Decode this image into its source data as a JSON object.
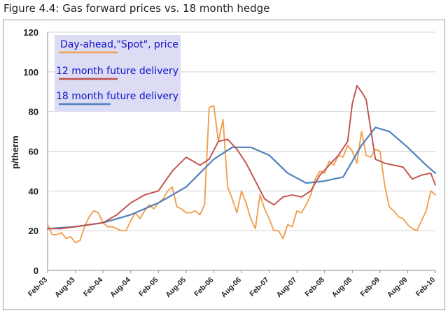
{
  "title": "Figure 4.4: Gas forward prices vs. 18 month hedge",
  "chart_data": {
    "type": "line",
    "ylabel": "p/therm",
    "xlabel": "",
    "ylim": [
      0,
      120
    ],
    "yticks": [
      0,
      20,
      40,
      60,
      80,
      100,
      120
    ],
    "xlim": [
      "2003-02",
      "2010-02"
    ],
    "x_tick_labels": [
      "Feb-03",
      "Aug-03",
      "Feb-04",
      "Aug-04",
      "Feb-05",
      "Aug-05",
      "Feb-06",
      "Aug-06",
      "Feb-07",
      "Aug-07",
      "Feb-08",
      "Aug-08",
      "Feb-09",
      "Aug-09",
      "Feb-10"
    ],
    "grid": "horizontal",
    "legend_position": "top-left",
    "colors": {
      "spot": "#f0a050",
      "m12": "#c0504d",
      "m18": "#4f81bd",
      "legend_bg": "#dcdcf4",
      "legend_text": "#1010c8"
    },
    "series": [
      {
        "name": "Day-ahead,\"Spot\", price",
        "key": "spot",
        "x": [
          "2003-02",
          "2003-03",
          "2003-04",
          "2003-05",
          "2003-06",
          "2003-07",
          "2003-08",
          "2003-09",
          "2003-10",
          "2003-11",
          "2003-12",
          "2004-01",
          "2004-02",
          "2004-03",
          "2004-04",
          "2004-05",
          "2004-06",
          "2004-07",
          "2004-08",
          "2004-09",
          "2004-10",
          "2004-11",
          "2004-12",
          "2005-01",
          "2005-02",
          "2005-03",
          "2005-04",
          "2005-05",
          "2005-06",
          "2005-07",
          "2005-08",
          "2005-09",
          "2005-10",
          "2005-11",
          "2005-12",
          "2006-01",
          "2006-02",
          "2006-03",
          "2006-04",
          "2006-05",
          "2006-06",
          "2006-07",
          "2006-08",
          "2006-09",
          "2006-10",
          "2006-11",
          "2006-12",
          "2007-01",
          "2007-02",
          "2007-03",
          "2007-04",
          "2007-05",
          "2007-06",
          "2007-07",
          "2007-08",
          "2007-09",
          "2007-10",
          "2007-11",
          "2007-12",
          "2008-01",
          "2008-02",
          "2008-03",
          "2008-04",
          "2008-05",
          "2008-06",
          "2008-07",
          "2008-08",
          "2008-09",
          "2008-10",
          "2008-11",
          "2008-12",
          "2009-01",
          "2009-02",
          "2009-03",
          "2009-04",
          "2009-05",
          "2009-06",
          "2009-07",
          "2009-08",
          "2009-09",
          "2009-10",
          "2009-11",
          "2009-12",
          "2010-01",
          "2010-02"
        ],
        "values": [
          23,
          18,
          18,
          19,
          16,
          17,
          14,
          15,
          22,
          27,
          30,
          29,
          24,
          22,
          22,
          21,
          20,
          20,
          25,
          29,
          26,
          30,
          33,
          31,
          34,
          36,
          40,
          42,
          32,
          31,
          29,
          29,
          30,
          28,
          33,
          82,
          83,
          65,
          76,
          42,
          36,
          29,
          40,
          34,
          26,
          21,
          38,
          31,
          26,
          20,
          20,
          16,
          23,
          22,
          30,
          29,
          33,
          38,
          46,
          50,
          49,
          55,
          53,
          58,
          57,
          63,
          60,
          54,
          70,
          58,
          57,
          61,
          60,
          43,
          32,
          30,
          27,
          26,
          23,
          21,
          20,
          25,
          30,
          40,
          38
        ]
      },
      {
        "name": "12 month future delivery",
        "key": "m12",
        "x": [
          "2003-02",
          "2003-05",
          "2003-08",
          "2003-11",
          "2004-02",
          "2004-05",
          "2004-08",
          "2004-11",
          "2005-02",
          "2005-05",
          "2005-08",
          "2005-11",
          "2006-01",
          "2006-03",
          "2006-05",
          "2006-07",
          "2006-09",
          "2006-11",
          "2007-01",
          "2007-03",
          "2007-05",
          "2007-07",
          "2007-09",
          "2007-11",
          "2008-01",
          "2008-03",
          "2008-05",
          "2008-07",
          "2008-08",
          "2008-09",
          "2008-10",
          "2008-11",
          "2009-01",
          "2009-03",
          "2009-05",
          "2009-07",
          "2009-09",
          "2009-11",
          "2010-01",
          "2010-02"
        ],
        "values": [
          21,
          21,
          22,
          23,
          24,
          28,
          34,
          38,
          40,
          50,
          57,
          53,
          56,
          65,
          66,
          61,
          54,
          45,
          36,
          33,
          37,
          38,
          37,
          40,
          48,
          53,
          58,
          65,
          84,
          93,
          90,
          86,
          56,
          54,
          53,
          52,
          46,
          48,
          49,
          43
        ]
      },
      {
        "name": "18 month future delivery",
        "key": "m18",
        "x": [
          "2003-02",
          "2003-08",
          "2004-02",
          "2004-08",
          "2005-02",
          "2005-08",
          "2006-02",
          "2006-06",
          "2006-10",
          "2007-02",
          "2007-06",
          "2007-10",
          "2008-02",
          "2008-06",
          "2008-10",
          "2009-01",
          "2009-04",
          "2009-08",
          "2009-12",
          "2010-02"
        ],
        "values": [
          21,
          22,
          24,
          28,
          34,
          42,
          56,
          62,
          62,
          58,
          49,
          44,
          45,
          47,
          63,
          72,
          70,
          62,
          53,
          49
        ]
      }
    ]
  }
}
